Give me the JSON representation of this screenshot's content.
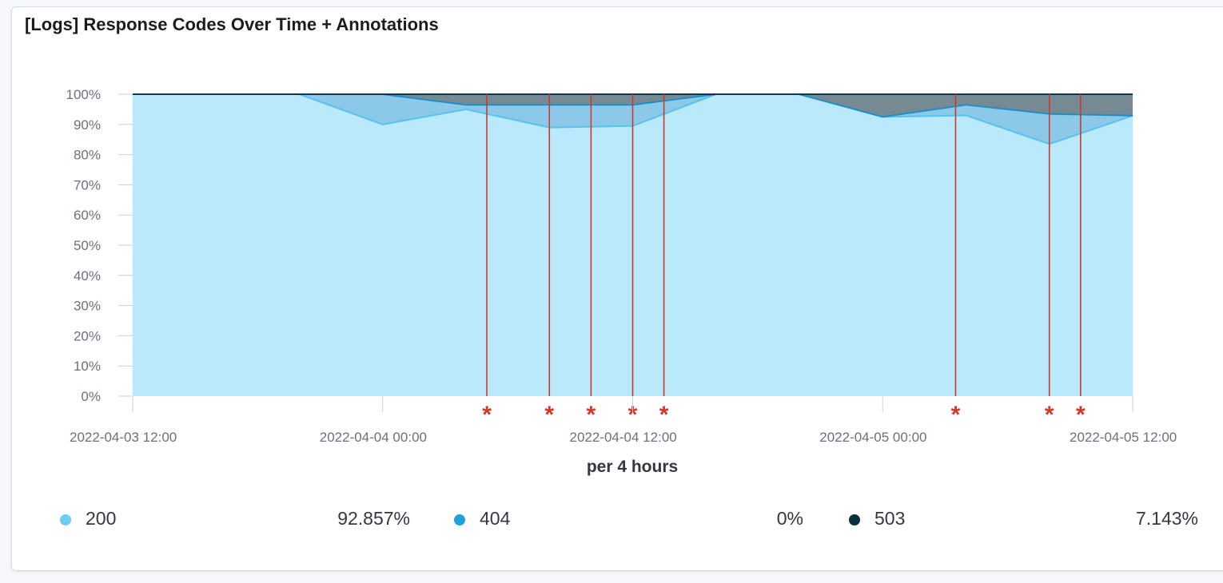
{
  "panel": {
    "title": "[Logs] Response Codes Over Time + Annotations"
  },
  "legend": [
    {
      "label": "200",
      "value": "92.857%",
      "color": "#6dccf1"
    },
    {
      "label": "404",
      "value": "0%",
      "color": "#1ea0db"
    },
    {
      "label": "503",
      "value": "7.143%",
      "color": "#0a2f3f"
    }
  ],
  "chart_data": {
    "type": "area",
    "stacked": "percentage",
    "xlabel": "per 4 hours",
    "ylabel": "",
    "ylim": [
      0,
      100
    ],
    "yticks": [
      "0%",
      "10%",
      "20%",
      "30%",
      "40%",
      "50%",
      "60%",
      "70%",
      "80%",
      "90%",
      "100%"
    ],
    "xticks": [
      "2022-04-03 12:00",
      "2022-04-04 00:00",
      "2022-04-04 12:00",
      "2022-04-05 00:00",
      "2022-04-05 12:00"
    ],
    "x": [
      "2022-04-03 12:00",
      "2022-04-03 16:00",
      "2022-04-03 20:00",
      "2022-04-04 00:00",
      "2022-04-04 04:00",
      "2022-04-04 08:00",
      "2022-04-04 12:00",
      "2022-04-04 16:00",
      "2022-04-04 20:00",
      "2022-04-05 00:00",
      "2022-04-05 04:00",
      "2022-04-05 08:00",
      "2022-04-05 12:00"
    ],
    "series": [
      {
        "name": "200",
        "values": [
          100,
          100,
          100,
          90,
          95,
          89,
          89.5,
          100,
          100,
          92.5,
          93,
          83.5,
          92.9
        ]
      },
      {
        "name": "404",
        "values": [
          0,
          0,
          0,
          10,
          1.5,
          7.5,
          7,
          0,
          0,
          0,
          3.5,
          10,
          0
        ]
      },
      {
        "name": "503",
        "values": [
          0,
          0,
          0,
          0,
          3.5,
          3.5,
          3.5,
          0,
          0,
          7.5,
          3.5,
          6.5,
          7.1
        ]
      }
    ],
    "colors": {
      "200": "#6dccf1",
      "404": "#1ea0db",
      "503": "#0a2f3f"
    },
    "annotations": [
      "2022-04-04 05:00",
      "2022-04-04 08:00",
      "2022-04-04 10:00",
      "2022-04-04 12:00",
      "2022-04-04 13:30",
      "2022-04-05 03:30",
      "2022-04-05 08:00",
      "2022-04-05 09:30"
    ],
    "annotation_marker": "*",
    "annotation_color": "#cc3a2b",
    "grid": true,
    "legend_position": "bottom"
  }
}
